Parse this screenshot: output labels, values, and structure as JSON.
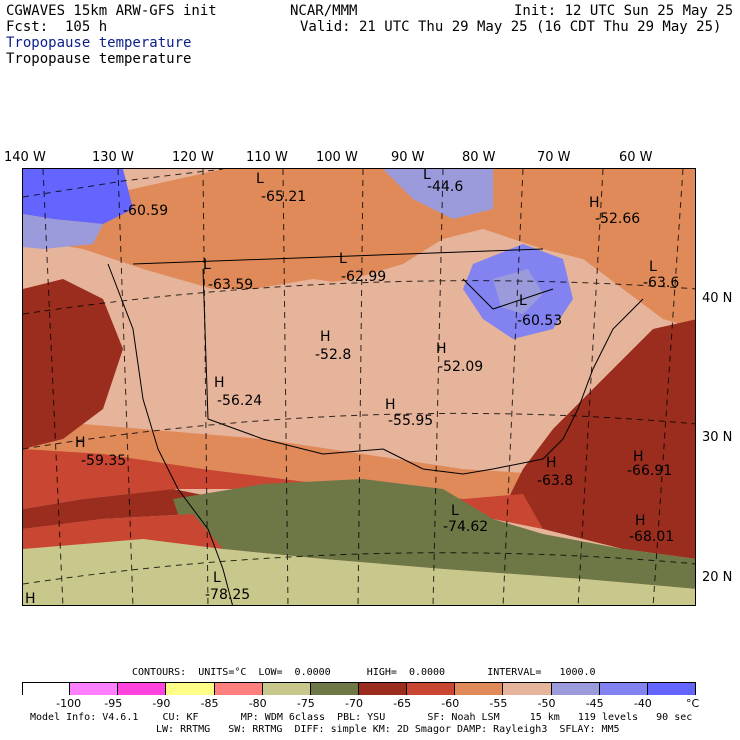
{
  "header": {
    "model": "CGWAVES 15km ARW-GFS init",
    "forecast": "Fcst:  105 h",
    "center": "NCAR/MMM",
    "init": "Init: 12 UTC Sun 25 May 25",
    "valid": "Valid: 21 UTC Thu 29 May 25 (16 CDT Thu 29 May 25)",
    "field_blue": "Tropopause temperature",
    "field_black": "Tropopause temperature"
  },
  "longitudes": [
    "140 W",
    "130 W",
    "120 W",
    "110 W",
    "100 W",
    "90 W",
    "80 W",
    "70 W",
    "60 W"
  ],
  "latitudes": [
    "40 N",
    "30 N",
    "20 N"
  ],
  "extrema": [
    {
      "type": "L",
      "label": "-65.21"
    },
    {
      "type": "L",
      "label": "-44.6"
    },
    {
      "type": "",
      "label": "-60.59"
    },
    {
      "type": "H",
      "label": "-52.66"
    },
    {
      "type": "L",
      "label": "-63.59"
    },
    {
      "type": "L",
      "label": "-62.99"
    },
    {
      "type": "L",
      "label": "-63.6"
    },
    {
      "type": "L",
      "label": "-60.53"
    },
    {
      "type": "H",
      "label": "-52.8"
    },
    {
      "type": "H",
      "label": "-52.09"
    },
    {
      "type": "H",
      "label": "-56.24"
    },
    {
      "type": "H",
      "label": "-55.95"
    },
    {
      "type": "H",
      "label": "-59.35"
    },
    {
      "type": "H",
      "label": "-63.8"
    },
    {
      "type": "H",
      "label": "-66.91"
    },
    {
      "type": "L",
      "label": "-74.62"
    },
    {
      "type": "H",
      "label": "-68.01"
    },
    {
      "type": "L",
      "label": "-78.25"
    },
    {
      "type": "H",
      "label": ""
    }
  ],
  "contours": {
    "text": "CONTOURS:  UNITS=°C  LOW=  0.0000      HIGH=  0.0000       INTERVAL=   1000.0"
  },
  "colorbar": {
    "colors": [
      "#ffffff",
      "#ff80ff",
      "#ff44dd",
      "#ffff88",
      "#ff7f7f",
      "#c8c88c",
      "#6e7846",
      "#9b2d1e",
      "#c84632",
      "#e08a5a",
      "#e6b49b",
      "#9b9bdc",
      "#8282f0",
      "#6464ff"
    ],
    "labels": [
      "-100",
      "-95",
      "-90",
      "-85",
      "-80",
      "-75",
      "-70",
      "-65",
      "-60",
      "-55",
      "-50",
      "-45",
      "-40",
      "°C"
    ]
  },
  "footer": {
    "line1": "Model Info: V4.6.1    CU: KF       MP: WDM 6class  PBL: YSU       SF: Noah LSM     15 km   119 levels   90 sec",
    "line2": "LW: RRTMG   SW: RRTMG  DIFF: simple KM: 2D Smagor DAMP: Rayleigh3  SFLAY: MM5"
  }
}
